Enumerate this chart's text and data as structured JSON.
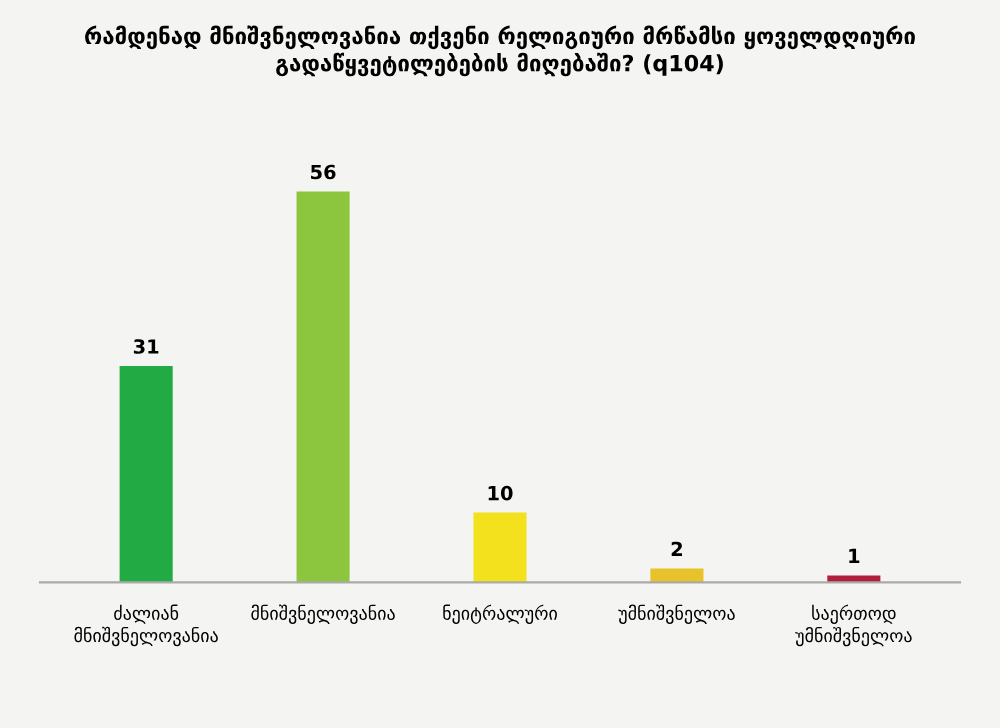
{
  "chart_data": {
    "type": "bar",
    "title": "რამდენად მნიშვნელოვანია თქვენი რელიგიური მრწამსი ყოველდღიური გადაწყვეტილებების მიღებაში? (q104)",
    "categories": [
      "ძალიან მნიშვნელოვანია",
      "მნიშვნელოვანია",
      "ნეიტრალური",
      "უმნიშვნელოა",
      "საერთოდ უმნიშვნელოა"
    ],
    "values": [
      31,
      56,
      10,
      2,
      1
    ],
    "colors": [
      "#22aa44",
      "#8cc63f",
      "#f2e11c",
      "#e8c22a",
      "#b0203a"
    ],
    "data_labels": true,
    "grid": false,
    "legend": false
  }
}
